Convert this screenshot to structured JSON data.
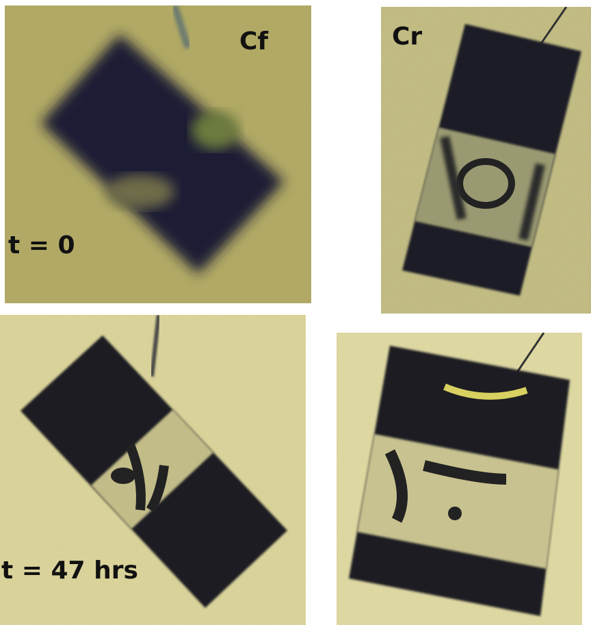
{
  "column_labels": [
    "Cf",
    "Cr"
  ],
  "row_labels": [
    "t = 0",
    "t = 47 hrs"
  ]
}
